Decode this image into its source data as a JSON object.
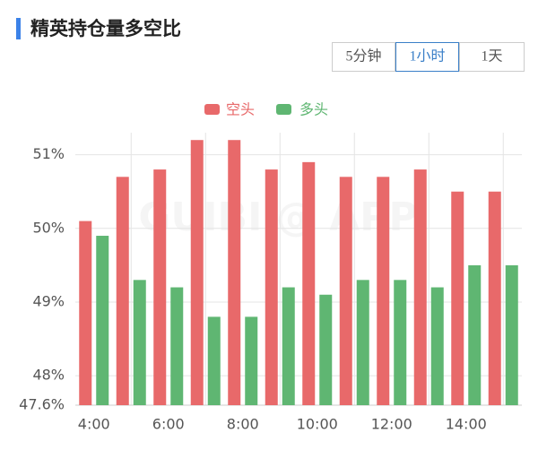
{
  "chart_data": {
    "type": "bar",
    "title": "精英持仓量多空比",
    "tabs": [
      "5分钟",
      "1小时",
      "1天"
    ],
    "active_tab": 1,
    "watermark": "GUIBI @ APP",
    "categories": [
      "4:00",
      null,
      "6:00",
      null,
      "8:00",
      null,
      "10:00",
      null,
      "12:00",
      null,
      "14:00",
      null
    ],
    "series": [
      {
        "name": "空头",
        "color": "#e8696a",
        "values": [
          50.1,
          50.7,
          50.8,
          51.2,
          51.2,
          50.8,
          50.9,
          50.7,
          50.7,
          50.8,
          50.5,
          50.5
        ]
      },
      {
        "name": "多头",
        "color": "#5fb672",
        "values": [
          49.9,
          49.3,
          49.2,
          48.8,
          48.8,
          49.2,
          49.1,
          49.3,
          49.3,
          49.2,
          49.5,
          49.5
        ]
      }
    ],
    "ylim": [
      47.6,
      51.3
    ],
    "yticks": [
      {
        "value": 47.6,
        "label": "47.6%"
      },
      {
        "value": 48,
        "label": "48%"
      },
      {
        "value": 49,
        "label": "49%"
      },
      {
        "value": 50,
        "label": "50%"
      },
      {
        "value": 51,
        "label": "51%"
      }
    ],
    "grid": true
  }
}
